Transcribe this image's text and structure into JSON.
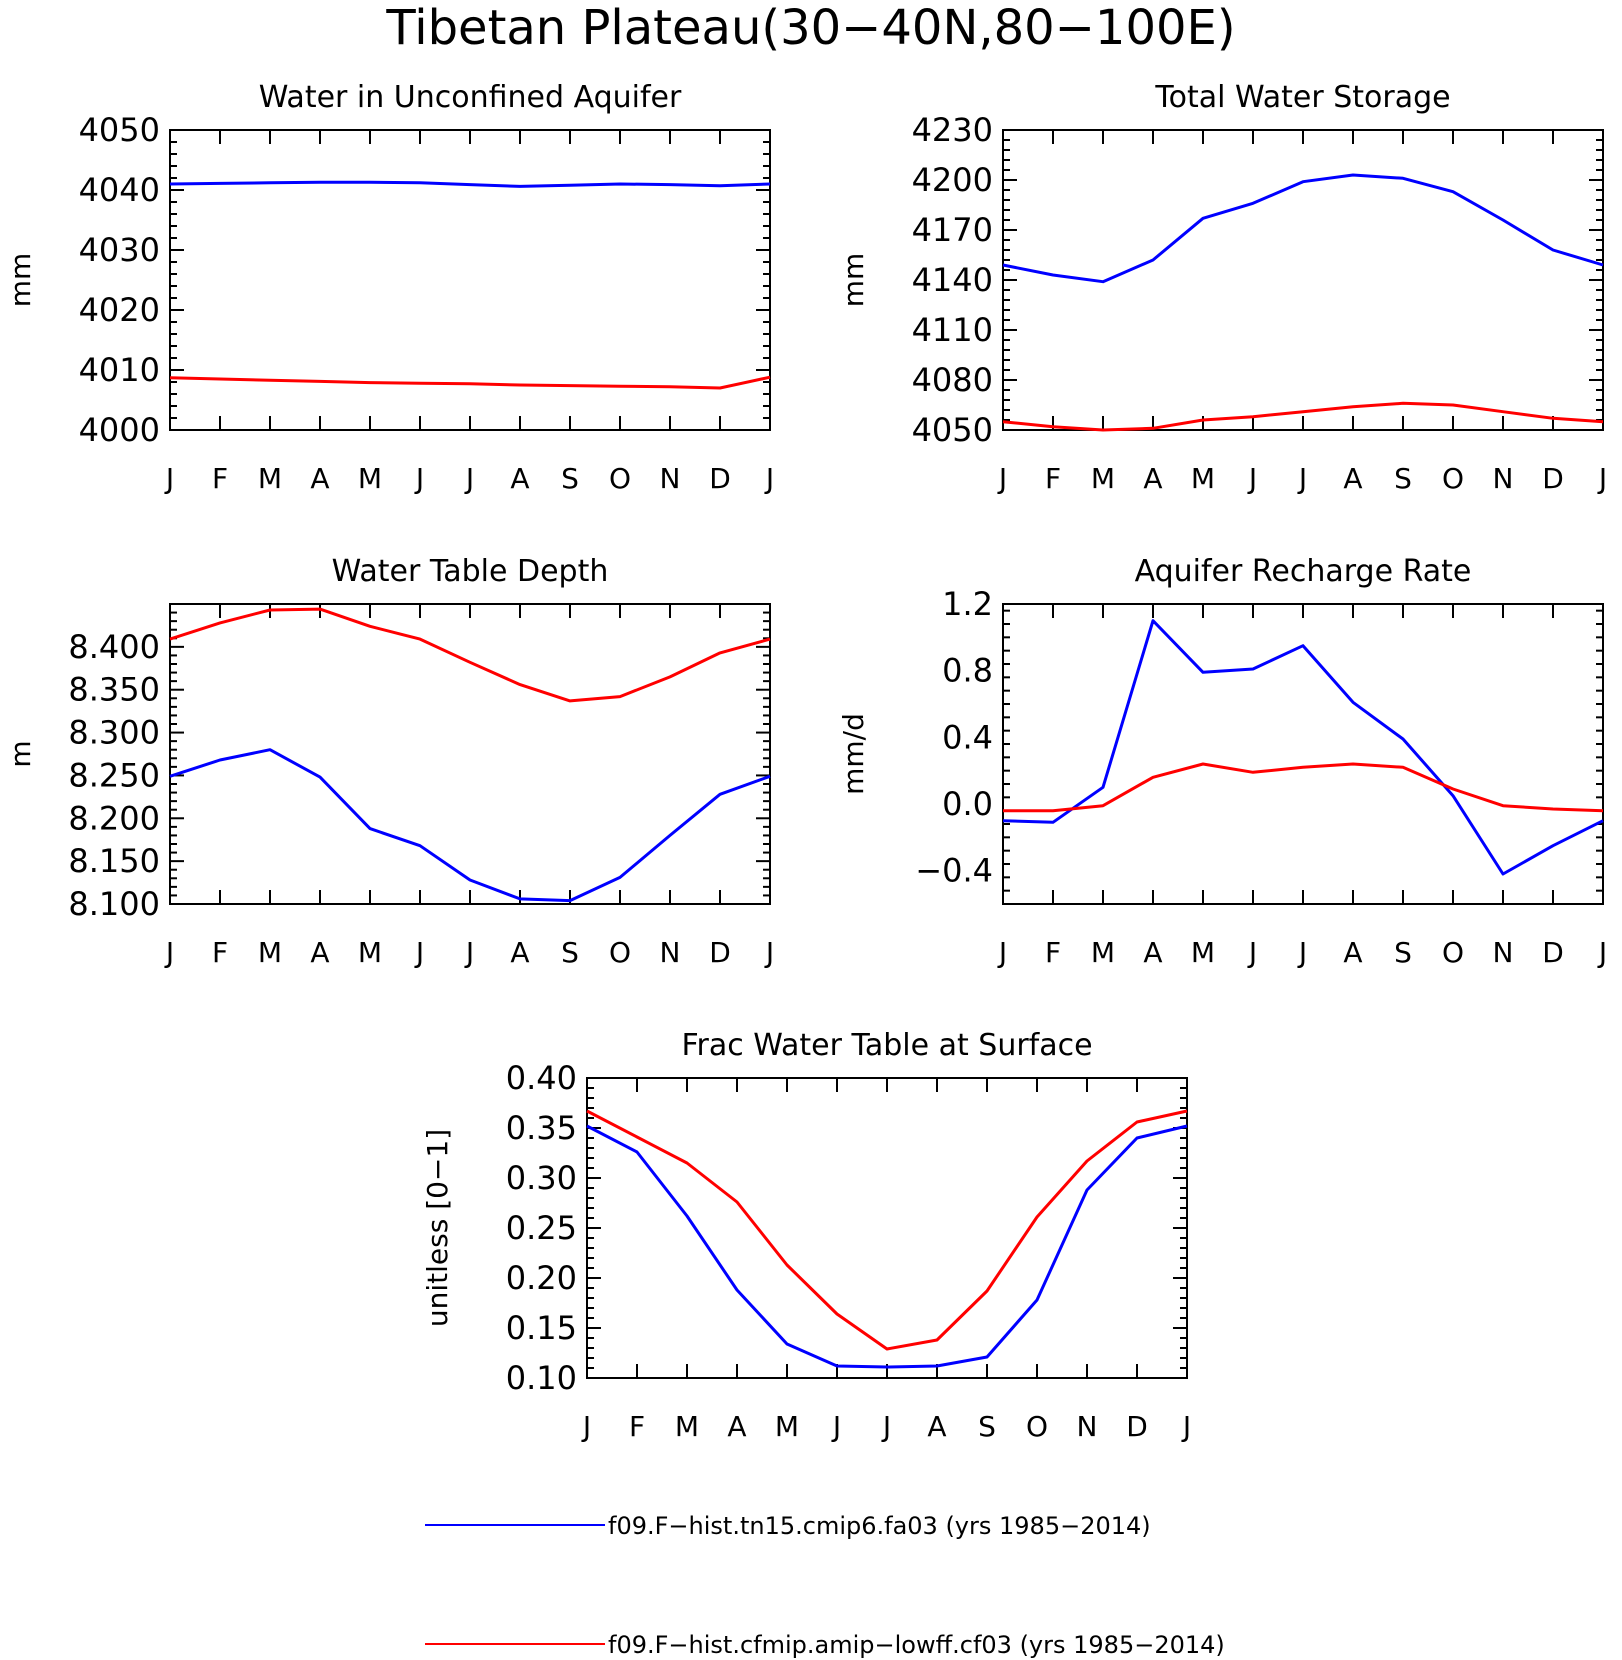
{
  "figure": {
    "title": "Tibetan Plateau(30−40N,80−100E)"
  },
  "months": [
    "J",
    "F",
    "M",
    "A",
    "M",
    "J",
    "J",
    "A",
    "S",
    "O",
    "N",
    "D",
    "J"
  ],
  "colors": {
    "series1": "#0000ff",
    "series2": "#ff0000"
  },
  "legend": {
    "series1": "f09.F−hist.tn15.cmip6.fa03 (yrs 1985−2014)",
    "series2": "f09.F−hist.cfmip.amip−lowff.cf03 (yrs 1985−2014)"
  },
  "chart_data": [
    {
      "type": "line",
      "title": "Water in Unconfined Aquifer",
      "ylabel": "mm",
      "ylim": [
        4000,
        4050
      ],
      "yticks": [
        4000,
        4010,
        4020,
        4030,
        4040,
        4050
      ],
      "tick_decimals": 0,
      "series": [
        {
          "name": "f09.F−hist.tn15.cmip6.fa03 (yrs 1985−2014)",
          "color": "#0000ff",
          "values": [
            4041.0,
            4041.1,
            4041.2,
            4041.3,
            4041.3,
            4041.2,
            4040.9,
            4040.6,
            4040.8,
            4041.0,
            4040.9,
            4040.7,
            4041.0
          ]
        },
        {
          "name": "f09.F−hist.cfmip.amip−lowff.cf03 (yrs 1985−2014)",
          "color": "#ff0000",
          "values": [
            4008.7,
            4008.5,
            4008.3,
            4008.1,
            4007.9,
            4007.8,
            4007.7,
            4007.5,
            4007.4,
            4007.3,
            4007.2,
            4007.0,
            4008.8
          ]
        }
      ]
    },
    {
      "type": "line",
      "title": "Total Water Storage",
      "ylabel": "mm",
      "ylim": [
        4050,
        4230
      ],
      "yticks": [
        4050,
        4080,
        4110,
        4140,
        4170,
        4200,
        4230
      ],
      "tick_decimals": 0,
      "series": [
        {
          "name": "f09.F−hist.tn15.cmip6.fa03 (yrs 1985−2014)",
          "color": "#0000ff",
          "values": [
            4149,
            4143,
            4139,
            4152,
            4177,
            4186,
            4199,
            4203,
            4201,
            4193,
            4176,
            4158,
            4149
          ]
        },
        {
          "name": "f09.F−hist.cfmip.amip−lowff.cf03 (yrs 1985−2014)",
          "color": "#ff0000",
          "values": [
            4055,
            4052,
            4050,
            4051,
            4056,
            4058,
            4061,
            4064,
            4066,
            4065,
            4061,
            4057,
            4055
          ]
        }
      ]
    },
    {
      "type": "line",
      "title": "Water Table Depth",
      "ylabel": "m",
      "ylim": [
        8.1,
        8.45
      ],
      "yticks": [
        8.1,
        8.15,
        8.2,
        8.25,
        8.3,
        8.35,
        8.4
      ],
      "tick_decimals": 3,
      "series": [
        {
          "name": "f09.F−hist.tn15.cmip6.fa03 (yrs 1985−2014)",
          "color": "#0000ff",
          "values": [
            8.249,
            8.268,
            8.28,
            8.248,
            8.188,
            8.168,
            8.128,
            8.106,
            8.104,
            8.131,
            8.18,
            8.228,
            8.249
          ]
        },
        {
          "name": "f09.F−hist.cfmip.amip−lowff.cf03 (yrs 1985−2014)",
          "color": "#ff0000",
          "values": [
            8.409,
            8.428,
            8.443,
            8.444,
            8.424,
            8.409,
            8.382,
            8.356,
            8.337,
            8.342,
            8.365,
            8.393,
            8.409
          ]
        }
      ]
    },
    {
      "type": "line",
      "title": "Aquifer Recharge Rate",
      "ylabel": "mm/d",
      "ylim": [
        -0.6,
        1.2
      ],
      "yticks": [
        -0.4,
        0.0,
        0.4,
        0.8,
        1.2
      ],
      "tick_decimals": 1,
      "series": [
        {
          "name": "f09.F−hist.tn15.cmip6.fa03 (yrs 1985−2014)",
          "color": "#0000ff",
          "values": [
            -0.1,
            -0.11,
            0.1,
            1.1,
            0.79,
            0.81,
            0.95,
            0.61,
            0.39,
            0.05,
            -0.42,
            -0.25,
            -0.1
          ]
        },
        {
          "name": "f09.F−hist.cfmip.amip−lowff.cf03 (yrs 1985−2014)",
          "color": "#ff0000",
          "values": [
            -0.04,
            -0.04,
            -0.01,
            0.16,
            0.24,
            0.19,
            0.22,
            0.24,
            0.22,
            0.09,
            -0.01,
            -0.03,
            -0.04
          ]
        }
      ]
    },
    {
      "type": "line",
      "title": "Frac Water Table at Surface",
      "ylabel": "unitless [0−1]",
      "ylim": [
        0.1,
        0.4
      ],
      "yticks": [
        0.1,
        0.15,
        0.2,
        0.25,
        0.3,
        0.35,
        0.4
      ],
      "tick_decimals": 2,
      "series": [
        {
          "name": "f09.F−hist.tn15.cmip6.fa03 (yrs 1985−2014)",
          "color": "#0000ff",
          "values": [
            0.352,
            0.326,
            0.262,
            0.188,
            0.134,
            0.112,
            0.111,
            0.112,
            0.121,
            0.178,
            0.288,
            0.34,
            0.352
          ]
        },
        {
          "name": "f09.F−hist.cfmip.amip−lowff.cf03 (yrs 1985−2014)",
          "color": "#ff0000",
          "values": [
            0.367,
            0.341,
            0.315,
            0.276,
            0.213,
            0.164,
            0.129,
            0.138,
            0.187,
            0.261,
            0.317,
            0.356,
            0.367
          ]
        }
      ]
    }
  ]
}
